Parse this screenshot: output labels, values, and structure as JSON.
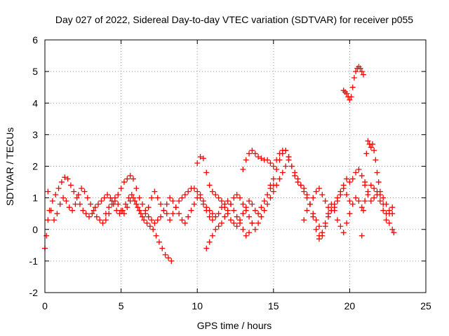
{
  "chart_data": {
    "type": "scatter",
    "title": "Day 027 of 2022, Sidereal Day-to-day VTEC variation (SDTVAR) for receiver p055",
    "xlabel": "GPS time / hours",
    "ylabel": "SDTVAR / TECUs",
    "xlim": [
      0,
      25
    ],
    "ylim": [
      -2,
      6
    ],
    "xticks": [
      0,
      5,
      10,
      15,
      20,
      25
    ],
    "yticks": [
      -2,
      -1,
      0,
      1,
      2,
      3,
      4,
      5,
      6
    ],
    "xtick_labels": [
      "0",
      "5",
      "10",
      "15",
      "20",
      "25"
    ],
    "ytick_labels": [
      "-2",
      "-1",
      "0",
      "1",
      "2",
      "3",
      "4",
      "5",
      "6"
    ],
    "grid": true,
    "marker": "plus",
    "color": "#ff0000",
    "series": [
      {
        "name": "trace-a",
        "x": [
          0.0,
          0.1,
          0.2,
          0.3,
          0.5,
          0.7,
          0.9,
          1.1,
          1.3,
          1.5,
          1.7,
          1.9,
          2.1,
          2.3,
          2.5,
          2.7,
          2.9,
          3.1,
          3.3,
          3.5,
          3.7,
          3.9,
          4.1,
          4.3,
          4.5,
          4.7,
          4.9,
          5.1,
          5.3,
          5.5,
          5.7,
          5.9,
          6.1,
          6.3,
          6.5,
          6.7,
          6.9,
          7.1,
          7.3,
          7.5,
          7.7,
          7.9,
          8.1,
          8.3
        ],
        "y": [
          -0.6,
          -0.2,
          0.3,
          0.6,
          0.9,
          1.1,
          1.3,
          1.5,
          1.65,
          1.6,
          1.4,
          1.2,
          1.0,
          0.8,
          0.6,
          0.5,
          0.4,
          0.5,
          0.7,
          0.8,
          0.9,
          1.0,
          1.1,
          1.0,
          0.8,
          0.6,
          0.5,
          0.6,
          0.8,
          1.0,
          1.1,
          0.9,
          0.7,
          0.5,
          0.3,
          0.2,
          0.1,
          0.0,
          -0.2,
          -0.4,
          -0.6,
          -0.8,
          -0.9,
          -1.0
        ]
      },
      {
        "name": "trace-b",
        "x": [
          0.2,
          0.4,
          0.6,
          0.8,
          1.0,
          1.2,
          1.4,
          1.6,
          1.8,
          2.0,
          2.2,
          2.4,
          2.6,
          2.8,
          3.0,
          3.2,
          3.4,
          3.6,
          3.8,
          4.0,
          4.2,
          4.4,
          4.6,
          4.8,
          5.0,
          5.2,
          5.4,
          5.6,
          5.8,
          6.0,
          6.2,
          6.4,
          6.6,
          6.8,
          7.0,
          7.2,
          7.4,
          7.6,
          7.8,
          8.0
        ],
        "y": [
          1.2,
          0.6,
          0.3,
          0.5,
          0.8,
          1.0,
          0.9,
          0.7,
          0.6,
          0.8,
          1.1,
          1.3,
          1.2,
          1.0,
          0.8,
          0.6,
          0.4,
          0.3,
          0.2,
          0.3,
          0.5,
          0.8,
          0.9,
          0.8,
          0.6,
          0.5,
          0.7,
          0.9,
          1.0,
          0.8,
          0.6,
          0.4,
          0.5,
          0.7,
          1.0,
          1.2,
          1.0,
          0.8,
          0.6,
          0.5
        ]
      },
      {
        "name": "trace-c",
        "x": [
          4.0,
          4.2,
          4.4,
          4.6,
          4.8,
          5.0,
          5.2,
          5.4,
          5.6,
          5.8,
          6.0,
          6.2,
          6.4,
          6.6,
          6.8,
          7.0,
          7.2,
          7.4,
          7.6,
          7.8,
          8.0,
          8.2,
          8.4,
          8.6,
          8.8,
          9.0,
          9.2,
          9.4,
          9.6,
          9.8,
          10.0,
          10.2,
          10.4,
          10.6,
          10.8,
          11.0
        ],
        "y": [
          0.5,
          0.7,
          0.9,
          1.0,
          1.1,
          1.3,
          1.5,
          1.6,
          1.7,
          1.6,
          1.3,
          1.0,
          0.8,
          0.6,
          0.4,
          0.3,
          0.2,
          0.3,
          0.4,
          0.6,
          0.8,
          1.0,
          0.9,
          0.7,
          0.5,
          0.3,
          0.2,
          0.4,
          0.6,
          0.8,
          1.0,
          1.1,
          0.9,
          0.7,
          0.6,
          0.5
        ]
      },
      {
        "name": "trace-d",
        "x": [
          8.2,
          8.4,
          8.6,
          8.8,
          9.0,
          9.2,
          9.4,
          9.6,
          9.8,
          10.0,
          10.2,
          10.4,
          10.6,
          10.8,
          11.0,
          11.2,
          11.4,
          11.6,
          11.8,
          12.0,
          12.2,
          12.4,
          12.6,
          12.8,
          13.0,
          13.2,
          13.4,
          13.6
        ],
        "y": [
          0.3,
          0.5,
          0.7,
          0.9,
          1.0,
          1.1,
          1.2,
          1.3,
          1.3,
          1.2,
          1.0,
          0.8,
          0.6,
          0.4,
          0.3,
          0.4,
          0.5,
          0.7,
          0.8,
          0.9,
          0.8,
          0.6,
          0.4,
          0.2,
          0.0,
          -0.2,
          -0.1,
          0.2
        ]
      },
      {
        "name": "trace-e",
        "x": [
          10.0,
          10.2,
          10.4,
          10.6,
          10.8,
          11.0,
          11.2,
          11.4,
          11.6,
          11.8,
          12.0,
          12.2,
          12.4,
          12.6,
          12.8,
          13.0,
          13.2,
          13.4,
          13.6,
          13.8,
          14.0,
          14.2,
          14.4,
          14.6,
          14.8,
          15.0
        ],
        "y": [
          2.1,
          2.3,
          2.25,
          1.8,
          1.4,
          1.2,
          1.1,
          1.0,
          0.9,
          0.7,
          0.5,
          0.3,
          0.2,
          0.1,
          0.3,
          0.5,
          0.7,
          0.9,
          0.8,
          0.6,
          0.5,
          0.7,
          0.9,
          1.1,
          1.3,
          1.4
        ]
      },
      {
        "name": "trace-f",
        "x": [
          10.6,
          10.8,
          11.0,
          11.2,
          11.4,
          11.6,
          11.8,
          12.0,
          12.2,
          12.4,
          12.6,
          12.8,
          13.0,
          13.2,
          13.4,
          13.6,
          13.8,
          14.0,
          14.2,
          14.4,
          14.6,
          14.8,
          15.0,
          15.2,
          15.4,
          15.6,
          15.8,
          16.0
        ],
        "y": [
          -0.6,
          -0.4,
          -0.2,
          0.0,
          0.1,
          0.2,
          0.4,
          0.6,
          0.8,
          1.0,
          1.1,
          1.0,
          0.8,
          0.6,
          0.4,
          0.2,
          0.0,
          0.2,
          0.4,
          0.6,
          0.8,
          1.0,
          1.2,
          1.4,
          1.6,
          1.8,
          2.0,
          2.2
        ]
      },
      {
        "name": "trace-g",
        "x": [
          13.0,
          13.2,
          13.4,
          13.6,
          13.8,
          14.0,
          14.2,
          14.4,
          14.6,
          14.8,
          15.0,
          15.2,
          15.4,
          15.6,
          15.8,
          16.0,
          16.2,
          16.4,
          16.6,
          16.8,
          17.0,
          17.2,
          17.4,
          17.6,
          17.8,
          18.0
        ],
        "y": [
          1.9,
          2.2,
          2.4,
          2.5,
          2.4,
          2.3,
          2.25,
          2.2,
          2.2,
          2.1,
          2.0,
          2.2,
          2.4,
          2.5,
          2.5,
          2.3,
          2.0,
          1.8,
          1.6,
          1.4,
          1.2,
          1.0,
          0.8,
          0.5,
          0.3,
          0.1
        ]
      },
      {
        "name": "trace-h",
        "x": [
          14.8,
          15.0,
          15.2,
          15.4,
          15.6,
          15.8,
          16.0,
          16.2,
          16.4,
          16.6,
          16.8,
          17.0,
          17.2,
          17.4,
          17.6,
          17.8,
          18.0,
          18.2,
          18.4,
          18.6,
          18.8,
          19.0,
          19.2,
          19.4,
          19.6,
          19.8,
          20.0
        ],
        "y": [
          1.4,
          1.6,
          1.9,
          2.2,
          2.4,
          2.5,
          2.3,
          2.0,
          1.7,
          1.5,
          1.4,
          1.3,
          1.1,
          0.8,
          0.4,
          0.0,
          -0.3,
          -0.2,
          0.1,
          0.4,
          0.6,
          0.8,
          1.0,
          1.2,
          1.3,
          1.1,
          0.9
        ]
      },
      {
        "name": "trace-i",
        "x": [
          17.0,
          17.2,
          17.4,
          17.6,
          17.8,
          18.0,
          18.2,
          18.4,
          18.6,
          18.8,
          19.0,
          19.2,
          19.4,
          19.6,
          19.8,
          20.0,
          20.2,
          20.4,
          20.6,
          20.8,
          21.0,
          21.2,
          21.4,
          21.6,
          21.8,
          22.0,
          22.2,
          22.4,
          22.6,
          22.8,
          22.9
        ],
        "y": [
          0.3,
          0.6,
          0.8,
          1.0,
          1.2,
          1.3,
          1.1,
          0.9,
          0.7,
          0.6,
          0.7,
          0.9,
          1.1,
          1.4,
          1.6,
          1.5,
          1.6,
          1.8,
          1.9,
          1.7,
          1.4,
          1.1,
          0.9,
          1.0,
          1.2,
          1.1,
          0.8,
          0.5,
          0.2,
          0.0,
          -0.1
        ]
      },
      {
        "name": "trace-j",
        "x": [
          19.6,
          19.7,
          19.8,
          19.9,
          20.0,
          20.1,
          20.2,
          20.3,
          20.4,
          20.5,
          20.6,
          20.7,
          20.8,
          20.9
        ],
        "y": [
          4.4,
          4.35,
          4.3,
          4.2,
          4.1,
          4.2,
          4.5,
          4.8,
          5.0,
          5.1,
          5.15,
          5.1,
          5.0,
          4.9
        ]
      },
      {
        "name": "trace-k",
        "x": [
          20.8,
          20.9,
          21.0,
          21.1,
          21.2,
          21.3,
          21.4,
          21.5,
          21.6,
          21.7,
          21.8,
          21.9,
          22.0,
          22.2,
          22.4,
          22.6,
          22.8
        ],
        "y": [
          -0.2,
          0.6,
          1.5,
          2.4,
          2.8,
          2.7,
          2.6,
          2.7,
          2.5,
          2.2,
          1.8,
          1.5,
          1.2,
          1.0,
          0.8,
          0.6,
          0.5
        ]
      },
      {
        "name": "trace-l",
        "x": [
          18.0,
          18.2,
          18.4,
          18.6,
          18.8,
          19.0,
          19.2,
          19.4,
          19.6,
          19.8,
          20.0,
          20.2,
          20.4,
          20.6,
          20.8,
          21.0,
          21.2,
          21.4,
          21.6,
          21.8,
          22.0,
          22.2,
          22.4,
          22.6,
          22.8
        ],
        "y": [
          -0.2,
          -0.1,
          0.2,
          0.5,
          0.8,
          0.6,
          0.3,
          0.1,
          -0.1,
          0.2,
          0.5,
          0.8,
          1.0,
          0.9,
          0.7,
          0.9,
          1.2,
          1.4,
          1.3,
          1.1,
          0.9,
          0.6,
          0.3,
          0.5,
          0.7
        ]
      }
    ]
  }
}
